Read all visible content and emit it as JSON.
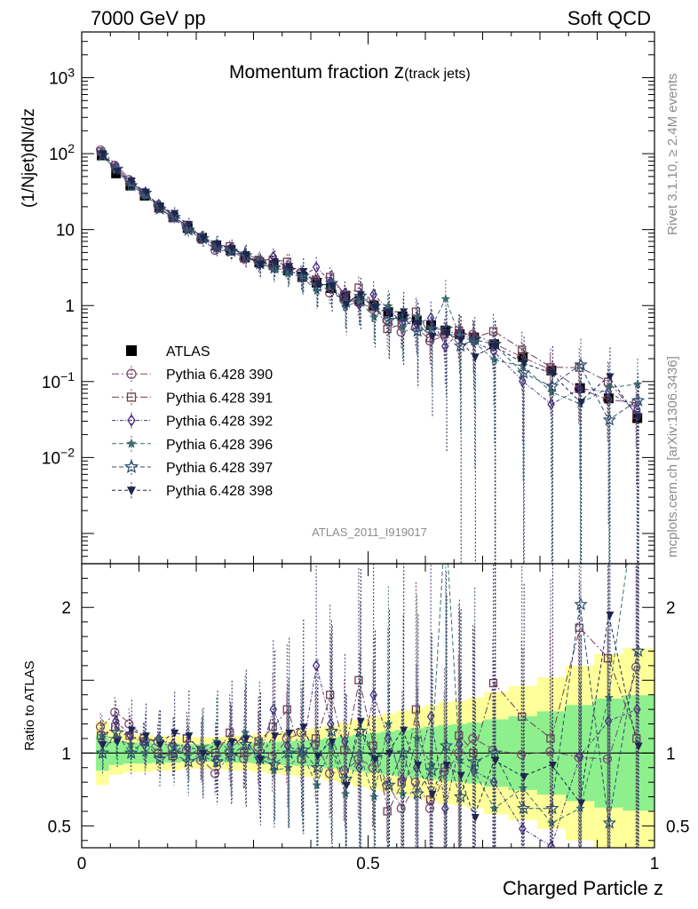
{
  "header": {
    "left_label": "7000 GeV pp",
    "right_label": "Soft QCD"
  },
  "side_labels": {
    "rivet": "Rivet 3.1.10, ≥ 2.4M events",
    "mcplots": "mcplots.cern.ch [arXiv:1306.3436]"
  },
  "analysis_id": "ATLAS_2011_I919017",
  "colors": {
    "ATLAS": "#000000",
    "Pythia 6.428 390": "#7a4a6e",
    "Pythia 6.428 391": "#6e3d55",
    "Pythia 6.428 392": "#4b2d86",
    "Pythia 6.428 396": "#3f6d70",
    "Pythia 6.428 397": "#2c4f6e",
    "Pythia 6.428 398": "#1e2650",
    "band_inner": "#8df08d",
    "band_outer": "#ffff99"
  },
  "chart_data": {
    "type": "scatter",
    "title_main": "Momentum fraction ",
    "title_z": "z",
    "title_sub": "(track jets)",
    "xlabel": "Charged Particle z",
    "ylabel": "(1/Njet)dN/dz",
    "ratio_ylabel": "Ratio to ATLAS",
    "xlim": [
      0,
      1
    ],
    "ylim": [
      0.0004,
      4000
    ],
    "y_scale": "log",
    "ratio_ylim": [
      0.35,
      2.3
    ],
    "x_ticks": [
      {
        "v": 0,
        "label": "0"
      },
      {
        "v": 0.5,
        "label": "0.5"
      },
      {
        "v": 1,
        "label": "1"
      }
    ],
    "y_ticks": [
      {
        "v": 1000,
        "base": "10",
        "exp": "3"
      },
      {
        "v": 100,
        "base": "10",
        "exp": "2"
      },
      {
        "v": 10,
        "base": "10",
        "exp": ""
      },
      {
        "v": 1,
        "base": "1",
        "exp": ""
      },
      {
        "v": 0.1,
        "base": "10",
        "exp": "−1"
      },
      {
        "v": 0.01,
        "base": "10",
        "exp": "−2"
      }
    ],
    "ratio_ticks": [
      {
        "v": 2,
        "label": "2"
      },
      {
        "v": 1,
        "label": "1"
      },
      {
        "v": 0.5,
        "label": "0.5"
      }
    ],
    "legend_position": "left, lower half of main panel",
    "x": [
      0.035,
      0.06,
      0.085,
      0.11,
      0.135,
      0.16,
      0.185,
      0.21,
      0.235,
      0.26,
      0.285,
      0.31,
      0.335,
      0.36,
      0.385,
      0.41,
      0.435,
      0.46,
      0.485,
      0.51,
      0.535,
      0.56,
      0.585,
      0.61,
      0.635,
      0.66,
      0.685,
      0.72,
      0.77,
      0.82,
      0.87,
      0.92,
      0.97
    ],
    "series": [
      {
        "name": "ATLAS",
        "marker": "square-filled",
        "values": [
          95,
          55,
          38,
          28,
          19.5,
          14.5,
          10.5,
          7.8,
          6.2,
          5.3,
          4.3,
          3.7,
          3.4,
          2.9,
          2.4,
          2.0,
          1.7,
          1.35,
          1.15,
          1.0,
          0.82,
          0.72,
          0.64,
          0.55,
          0.47,
          0.42,
          0.38,
          0.31,
          0.21,
          0.14,
          0.082,
          0.06,
          0.033
        ]
      },
      {
        "name": "Pythia 6.428 390",
        "marker": "circle-open",
        "dash": "8,3,2,3",
        "ratio": [
          1.18,
          1.28,
          1.2,
          1.1,
          1.08,
          1.04,
          1.02,
          0.95,
          0.86,
          1.0,
          0.96,
          1.04,
          0.98,
          1.1,
          1.14,
          1.06,
          0.86,
          0.88,
          0.96,
          0.9,
          0.78,
          0.62,
          0.8,
          0.62,
          0.87,
          1.0,
          1.1,
          1.02,
          0.99,
          1.01,
          0.97,
          0.96,
          1.59
        ]
      },
      {
        "name": "Pythia 6.428 391",
        "marker": "square-open",
        "dash": "8,3,2,3",
        "ratio": [
          1.12,
          1.18,
          1.12,
          1.08,
          1.0,
          0.98,
          1.1,
          1.02,
          1.0,
          1.14,
          1.0,
          1.08,
          1.18,
          1.3,
          0.96,
          1.1,
          1.4,
          1.02,
          1.5,
          1.05,
          0.6,
          0.8,
          1.3,
          0.68,
          0.9,
          1.12,
          1.0,
          1.48,
          1.25,
          1.1,
          1.86,
          1.65,
          1.1
        ]
      },
      {
        "name": "Pythia 6.428 392",
        "marker": "diamond-open",
        "dash": "4,2,1,2",
        "ratio": [
          1.08,
          1.22,
          1.12,
          1.06,
          1.1,
          1.06,
          1.04,
          1.02,
          0.95,
          1.06,
          1.1,
          0.96,
          1.3,
          1.05,
          1.0,
          1.6,
          1.2,
          1.08,
          0.9,
          1.4,
          1.1,
          0.82,
          0.9,
          1.25,
          0.62,
          1.06,
          0.88,
          0.8,
          0.48,
          0.36,
          0.98,
          1.22,
          1.3
        ]
      },
      {
        "name": "Pythia 6.428 396",
        "marker": "star-small",
        "dash": "5,3",
        "ratio": [
          1.12,
          1.1,
          1.06,
          1.0,
          1.1,
          1.04,
          0.98,
          1.04,
          1.08,
          1.02,
          1.14,
          1.08,
          0.88,
          0.9,
          1.0,
          0.78,
          1.05,
          0.72,
          1.0,
          0.7,
          1.2,
          0.72,
          1.1,
          0.92,
          2.6,
          0.95,
          0.88,
          0.62,
          0.76,
          0.52,
          0.62,
          1.38,
          2.8
        ]
      },
      {
        "name": "Pythia 6.428 397",
        "marker": "star-open",
        "dash": "5,3",
        "ratio": [
          1.0,
          1.14,
          1.0,
          1.08,
          0.96,
          1.0,
          0.94,
          0.98,
          0.94,
          0.98,
          1.06,
          0.96,
          0.92,
          1.0,
          1.02,
          0.9,
          1.15,
          0.82,
          1.15,
          0.98,
          0.78,
          1.0,
          0.72,
          0.88,
          1.05,
          0.7,
          0.94,
          1.0,
          0.62,
          0.62,
          2.02,
          0.52,
          1.7
        ]
      },
      {
        "name": "Pythia 6.428 398",
        "marker": "triangle-down-filled",
        "dash": "4,3",
        "ratio": [
          1.06,
          1.08,
          1.16,
          1.12,
          1.06,
          1.14,
          1.12,
          1.0,
          1.06,
          1.08,
          1.1,
          0.96,
          1.12,
          1.14,
          1.18,
          0.98,
          1.08,
          0.78,
          1.22,
          0.96,
          1.0,
          1.16,
          0.92,
          0.72,
          0.92,
          0.85,
          0.56,
          0.95,
          0.84,
          0.92,
          0.66,
          1.95,
          1.05
        ]
      }
    ]
  }
}
